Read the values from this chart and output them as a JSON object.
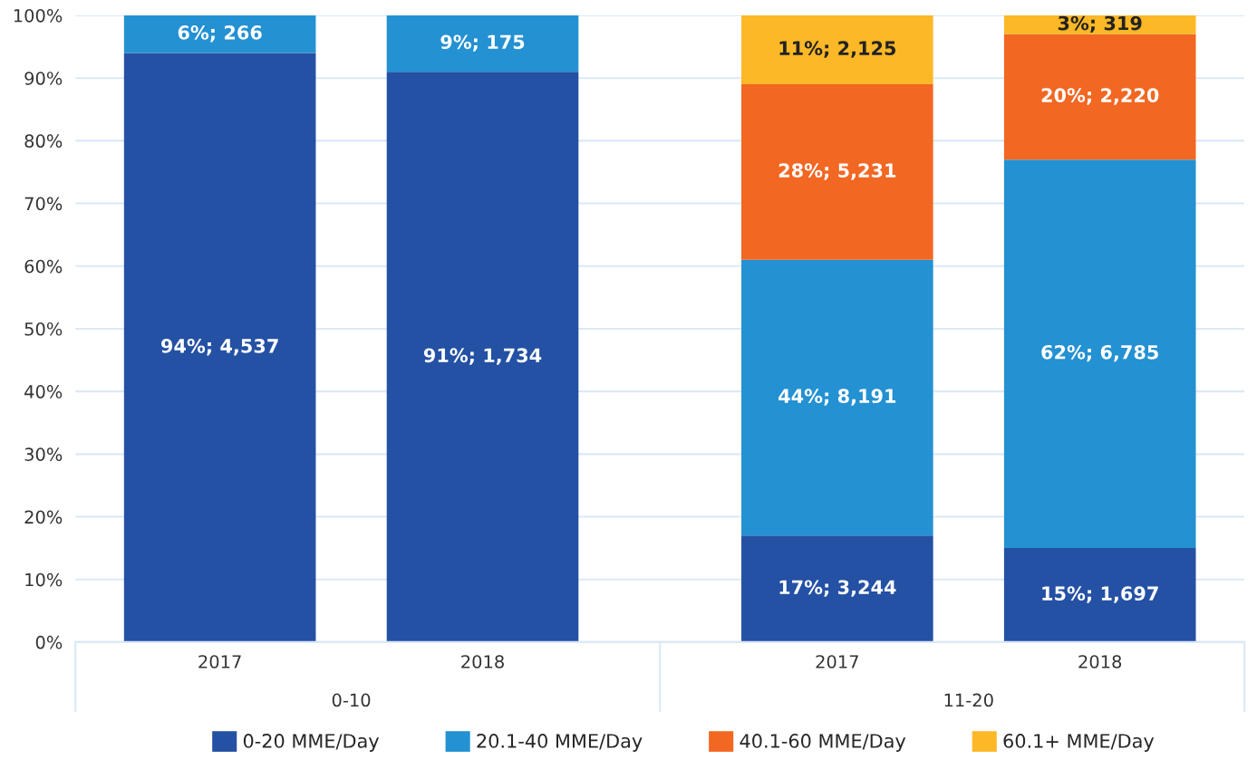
{
  "chart_data": {
    "type": "bar",
    "stacked": true,
    "categories": [
      "2017",
      "2018",
      "2017",
      "2018"
    ],
    "annotations": [
      "0-10",
      "11-20"
    ],
    "series": [
      {
        "name": "0-20 MME/Day",
        "color": "#2451a4",
        "values": [
          94,
          91,
          17,
          15
        ],
        "value_labels": [
          "94%; 4,537",
          "91%; 1,734",
          "17%; 3,244",
          "15%; 1,697"
        ]
      },
      {
        "name": "20.1-40 MME/Day",
        "color": "#2391d2",
        "values": [
          6,
          9,
          44,
          62
        ],
        "value_labels": [
          "6%; 266",
          "9%; 175",
          "44%; 8,191",
          "62%; 6,785"
        ]
      },
      {
        "name": "40.1-60 MME/Day",
        "color": "#f26722",
        "values": [
          null,
          null,
          28,
          20
        ],
        "value_labels": [
          null,
          null,
          "28%; 5,231",
          "20%; 2,220"
        ]
      },
      {
        "name": "60.1+ MME/Day",
        "color": "#fcb827",
        "values": [
          null,
          null,
          11,
          3
        ],
        "value_labels": [
          null,
          null,
          "11%; 2,125",
          "3%; 319"
        ]
      }
    ],
    "ylim": [
      0,
      100
    ],
    "yticks": [
      {
        "value": 0,
        "label": "0%"
      },
      {
        "value": 10,
        "label": "10%"
      },
      {
        "value": 20,
        "label": "20%"
      },
      {
        "value": 30,
        "label": "30%"
      },
      {
        "value": 40,
        "label": "40%"
      },
      {
        "value": 50,
        "label": "50%"
      },
      {
        "value": 60,
        "label": "60%"
      },
      {
        "value": 70,
        "label": "70%"
      },
      {
        "value": 80,
        "label": "80%"
      },
      {
        "value": 90,
        "label": "90%"
      },
      {
        "value": 100,
        "label": "100%"
      }
    ],
    "grid": "y",
    "legend": "bottom"
  }
}
